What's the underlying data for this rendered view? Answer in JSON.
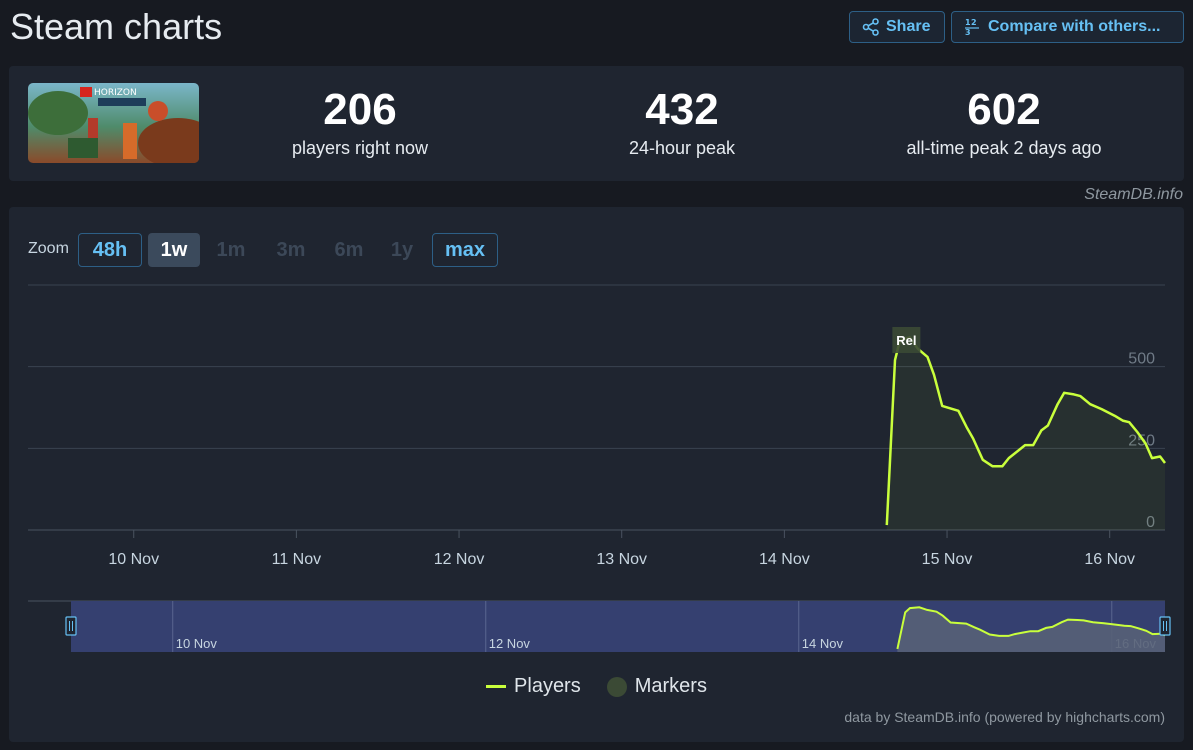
{
  "header": {
    "title": "Steam charts",
    "share_label": "Share",
    "compare_label": "Compare with others..."
  },
  "game": {
    "thumb_logo_line1": "HORIZON"
  },
  "stats": {
    "current": {
      "value": "206",
      "label": "players right now"
    },
    "peak24": {
      "value": "432",
      "label": "24-hour peak"
    },
    "alltime": {
      "value": "602",
      "label": "all-time peak 2 days ago"
    }
  },
  "source_note": "SteamDB.info",
  "zoom": {
    "label": "Zoom",
    "options": [
      {
        "label": "48h",
        "state": "available"
      },
      {
        "label": "1w",
        "state": "selected"
      },
      {
        "label": "1m",
        "state": "disabled"
      },
      {
        "label": "3m",
        "state": "disabled"
      },
      {
        "label": "6m",
        "state": "disabled"
      },
      {
        "label": "1y",
        "state": "disabled"
      },
      {
        "label": "max",
        "state": "available"
      }
    ]
  },
  "chart_data": {
    "type": "line",
    "x_unit": "days since 9 Nov",
    "x_ticks": [
      {
        "x": 1,
        "label": "10 Nov"
      },
      {
        "x": 2,
        "label": "11 Nov"
      },
      {
        "x": 3,
        "label": "12 Nov"
      },
      {
        "x": 4,
        "label": "13 Nov"
      },
      {
        "x": 5,
        "label": "14 Nov"
      },
      {
        "x": 6,
        "label": "15 Nov"
      },
      {
        "x": 7,
        "label": "16 Nov"
      }
    ],
    "y_ticks": [
      0,
      250,
      500
    ],
    "xlim": [
      0.35,
      7.34
    ],
    "ylim": [
      0,
      750
    ],
    "grid": true,
    "legend_position": "bottom-center",
    "marker": {
      "label": "Rel",
      "x": 5.75
    },
    "series": [
      {
        "name": "Players",
        "color": "#c9ff3c",
        "x": [
          5.63,
          5.68,
          5.71,
          5.77,
          5.82,
          5.88,
          5.92,
          5.97,
          6.07,
          6.12,
          6.16,
          6.22,
          6.28,
          6.34,
          6.38,
          6.43,
          6.48,
          6.53,
          6.58,
          6.62,
          6.68,
          6.72,
          6.78,
          6.82,
          6.88,
          6.95,
          7.03,
          7.08,
          7.12,
          7.17,
          7.22,
          7.26,
          7.31,
          7.34
        ],
        "values": [
          15,
          520,
          580,
          590,
          555,
          530,
          475,
          380,
          365,
          315,
          280,
          215,
          195,
          195,
          220,
          240,
          260,
          260,
          305,
          320,
          385,
          420,
          415,
          410,
          385,
          370,
          350,
          335,
          330,
          300,
          265,
          220,
          225,
          205
        ]
      }
    ]
  },
  "navigator": {
    "labels": [
      "10 Nov",
      "12 Nov",
      "14 Nov",
      "16 Nov"
    ]
  },
  "legend": {
    "players_label": "Players",
    "markers_label": "Markers"
  },
  "credits": "data by SteamDB.info (powered by highcharts.com)",
  "colors": {
    "accent": "#66c0f4",
    "series": "#c9ff3c",
    "navigator_fill": "#354070"
  }
}
